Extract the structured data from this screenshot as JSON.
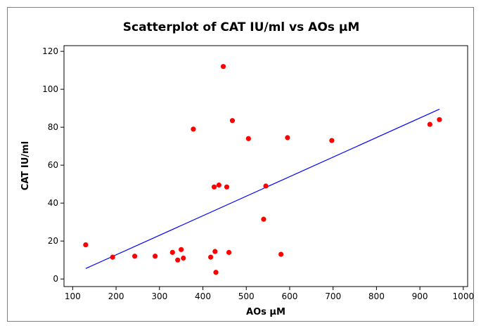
{
  "chart_data": {
    "type": "scatter",
    "title": "Scatterplot of CAT IU/ml vs AOs  μM",
    "xlabel": "AOs  μM",
    "ylabel": "CAT IU/ml",
    "xlim": [
      80,
      1010
    ],
    "ylim": [
      -4,
      123
    ],
    "xticks": [
      100,
      200,
      300,
      400,
      500,
      600,
      700,
      800,
      900,
      1000
    ],
    "yticks": [
      0,
      20,
      40,
      60,
      80,
      100,
      120
    ],
    "x_tick_labels": [
      "100",
      "200",
      "300",
      "400",
      "500",
      "600",
      "700",
      "800",
      "900",
      "1000"
    ],
    "y_tick_labels": [
      "0",
      "20",
      "40",
      "60",
      "80",
      "100",
      "120"
    ],
    "grid": false,
    "legend": "none",
    "points": [
      {
        "x": 130,
        "y": 18
      },
      {
        "x": 192,
        "y": 11.5
      },
      {
        "x": 243,
        "y": 12
      },
      {
        "x": 290,
        "y": 12
      },
      {
        "x": 330,
        "y": 14
      },
      {
        "x": 342,
        "y": 10
      },
      {
        "x": 350,
        "y": 15.5
      },
      {
        "x": 355,
        "y": 11
      },
      {
        "x": 378,
        "y": 79
      },
      {
        "x": 418,
        "y": 11.5
      },
      {
        "x": 426,
        "y": 48.5
      },
      {
        "x": 428,
        "y": 14.5
      },
      {
        "x": 430,
        "y": 3.5
      },
      {
        "x": 437,
        "y": 49.5
      },
      {
        "x": 447,
        "y": 112
      },
      {
        "x": 455,
        "y": 48.5
      },
      {
        "x": 460,
        "y": 14
      },
      {
        "x": 468,
        "y": 83.5
      },
      {
        "x": 505,
        "y": 74
      },
      {
        "x": 540,
        "y": 31.5
      },
      {
        "x": 545,
        "y": 49
      },
      {
        "x": 580,
        "y": 13
      },
      {
        "x": 595,
        "y": 74.5
      },
      {
        "x": 697,
        "y": 73
      },
      {
        "x": 923,
        "y": 81.5
      },
      {
        "x": 945,
        "y": 84
      }
    ],
    "fit_line": {
      "x": [
        130,
        945
      ],
      "y": [
        5.5,
        89.5
      ]
    },
    "colors": {
      "points": "#ff0000",
      "fit_line": "#0000ff",
      "plot_background": "#ffffff",
      "outer_background": "#ffffff"
    }
  }
}
